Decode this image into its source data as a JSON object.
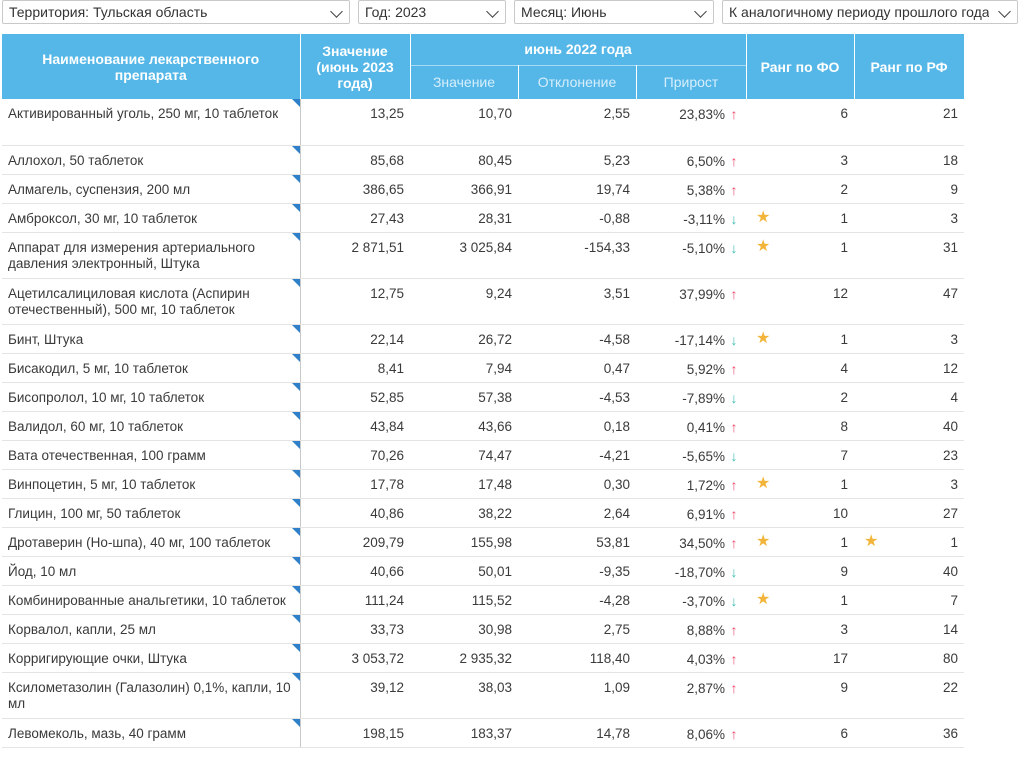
{
  "filters": {
    "territory": "Территория: Тульская область",
    "year": "Год: 2023",
    "month": "Месяц: Июнь",
    "compare": "К аналогичному периоду прошлого года"
  },
  "header": {
    "name": "Наименование лекарственного препарата",
    "value": "Значение (июнь 2023 года)",
    "prev_group": "июнь 2022 года",
    "prev_value": "Значение",
    "deviation": "Отклонение",
    "growth": "Прирост",
    "rank_fo": "Ранг по ФО",
    "rank_rf": "Ранг по РФ"
  },
  "colors": {
    "header_bg": "#55b7e8",
    "up": "#ef4c6d",
    "down": "#3fbcb4",
    "star": "#f2b53a"
  },
  "rows": [
    {
      "name": "Активированный уголь, 250 мг, 10 таблеток",
      "value": "13,25",
      "prev": "10,70",
      "dev": "2,55",
      "growth": "23,83%",
      "dir": "up",
      "fo": "6",
      "rf": "21",
      "star_fo": false,
      "star_rf": false
    },
    {
      "name": "Аллохол, 50 таблеток",
      "value": "85,68",
      "prev": "80,45",
      "dev": "5,23",
      "growth": "6,50%",
      "dir": "up",
      "fo": "3",
      "rf": "18",
      "star_fo": false,
      "star_rf": false
    },
    {
      "name": "Алмагель, суспензия, 200 мл",
      "value": "386,65",
      "prev": "366,91",
      "dev": "19,74",
      "growth": "5,38%",
      "dir": "up",
      "fo": "2",
      "rf": "9",
      "star_fo": false,
      "star_rf": false
    },
    {
      "name": "Амброксол, 30 мг, 10 таблеток",
      "value": "27,43",
      "prev": "28,31",
      "dev": "-0,88",
      "growth": "-3,11%",
      "dir": "down",
      "fo": "1",
      "rf": "3",
      "star_fo": true,
      "star_rf": false
    },
    {
      "name": "Аппарат для измерения артериального давления электронный, Штука",
      "value": "2 871,51",
      "prev": "3 025,84",
      "dev": "-154,33",
      "growth": "-5,10%",
      "dir": "down",
      "fo": "1",
      "rf": "31",
      "star_fo": true,
      "star_rf": false
    },
    {
      "name": "Ацетилсалициловая кислота (Аспирин отечественный), 500 мг, 10 таблеток",
      "value": "12,75",
      "prev": "9,24",
      "dev": "3,51",
      "growth": "37,99%",
      "dir": "up",
      "fo": "12",
      "rf": "47",
      "star_fo": false,
      "star_rf": false
    },
    {
      "name": "Бинт, Штука",
      "value": "22,14",
      "prev": "26,72",
      "dev": "-4,58",
      "growth": "-17,14%",
      "dir": "down",
      "fo": "1",
      "rf": "3",
      "star_fo": true,
      "star_rf": false
    },
    {
      "name": "Бисакодил, 5 мг, 10 таблеток",
      "value": "8,41",
      "prev": "7,94",
      "dev": "0,47",
      "growth": "5,92%",
      "dir": "up",
      "fo": "4",
      "rf": "12",
      "star_fo": false,
      "star_rf": false
    },
    {
      "name": "Бисопролол, 10 мг, 10 таблеток",
      "value": "52,85",
      "prev": "57,38",
      "dev": "-4,53",
      "growth": "-7,89%",
      "dir": "down",
      "fo": "2",
      "rf": "4",
      "star_fo": false,
      "star_rf": false
    },
    {
      "name": "Валидол, 60 мг, 10 таблеток",
      "value": "43,84",
      "prev": "43,66",
      "dev": "0,18",
      "growth": "0,41%",
      "dir": "up",
      "fo": "8",
      "rf": "40",
      "star_fo": false,
      "star_rf": false
    },
    {
      "name": "Вата отечественная, 100 грамм",
      "value": "70,26",
      "prev": "74,47",
      "dev": "-4,21",
      "growth": "-5,65%",
      "dir": "down",
      "fo": "7",
      "rf": "23",
      "star_fo": false,
      "star_rf": false
    },
    {
      "name": "Винпоцетин, 5 мг, 10 таблеток",
      "value": "17,78",
      "prev": "17,48",
      "dev": "0,30",
      "growth": "1,72%",
      "dir": "up",
      "fo": "1",
      "rf": "3",
      "star_fo": true,
      "star_rf": false
    },
    {
      "name": "Глицин, 100 мг, 50 таблеток",
      "value": "40,86",
      "prev": "38,22",
      "dev": "2,64",
      "growth": "6,91%",
      "dir": "up",
      "fo": "10",
      "rf": "27",
      "star_fo": false,
      "star_rf": false
    },
    {
      "name": "Дротаверин (Но-шпа), 40 мг, 100 таблеток",
      "value": "209,79",
      "prev": "155,98",
      "dev": "53,81",
      "growth": "34,50%",
      "dir": "up",
      "fo": "1",
      "rf": "1",
      "star_fo": true,
      "star_rf": true
    },
    {
      "name": "Йод, 10 мл",
      "value": "40,66",
      "prev": "50,01",
      "dev": "-9,35",
      "growth": "-18,70%",
      "dir": "down",
      "fo": "9",
      "rf": "40",
      "star_fo": false,
      "star_rf": false
    },
    {
      "name": "Комбинированные анальгетики, 10 таблеток",
      "value": "111,24",
      "prev": "115,52",
      "dev": "-4,28",
      "growth": "-3,70%",
      "dir": "down",
      "fo": "1",
      "rf": "7",
      "star_fo": true,
      "star_rf": false
    },
    {
      "name": "Корвалол, капли, 25 мл",
      "value": "33,73",
      "prev": "30,98",
      "dev": "2,75",
      "growth": "8,88%",
      "dir": "up",
      "fo": "3",
      "rf": "14",
      "star_fo": false,
      "star_rf": false
    },
    {
      "name": "Корригирующие очки, Штука",
      "value": "3 053,72",
      "prev": "2 935,32",
      "dev": "118,40",
      "growth": "4,03%",
      "dir": "up",
      "fo": "17",
      "rf": "80",
      "star_fo": false,
      "star_rf": false
    },
    {
      "name": "Ксилометазолин (Галазолин) 0,1%, капли, 10 мл",
      "value": "39,12",
      "prev": "38,03",
      "dev": "1,09",
      "growth": "2,87%",
      "dir": "up",
      "fo": "9",
      "rf": "22",
      "star_fo": false,
      "star_rf": false
    },
    {
      "name": "Левомеколь, мазь, 40 грамм",
      "value": "198,15",
      "prev": "183,37",
      "dev": "14,78",
      "growth": "8,06%",
      "dir": "up",
      "fo": "6",
      "rf": "36",
      "star_fo": false,
      "star_rf": false
    }
  ]
}
